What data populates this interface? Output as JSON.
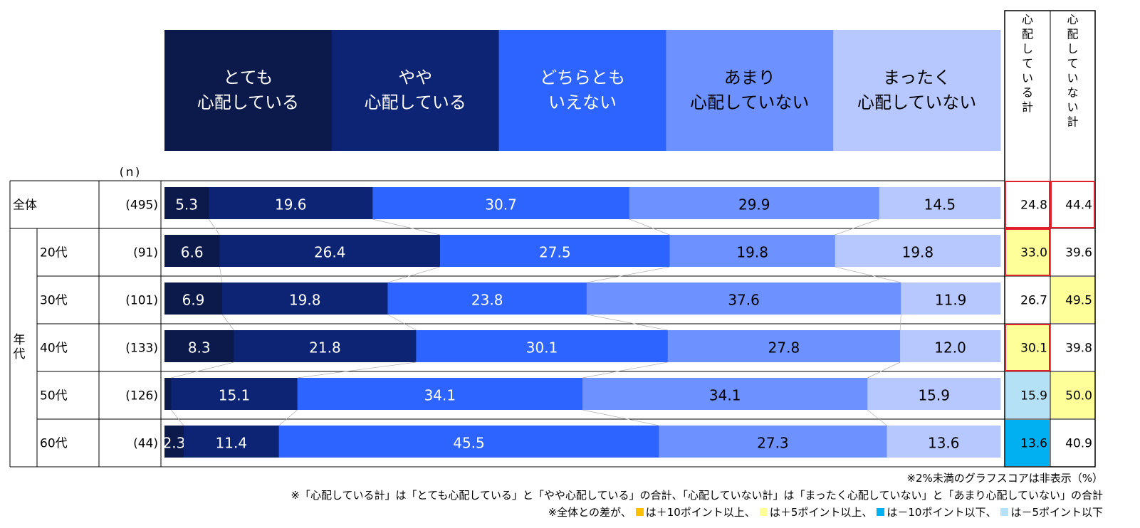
{
  "chart_data": {
    "type": "bar",
    "stacked": "100%",
    "n_header": "(ｎ)",
    "segment_labels": [
      "とても\n心配している",
      "やや\n心配している",
      "どちらとも\nいえない",
      "あまり\n心配していない",
      "まったく\n心配していない"
    ],
    "segment_colors": [
      "#0b1a4a",
      "#0d2475",
      "#2d64ff",
      "#6d91ff",
      "#b6c8ff"
    ],
    "total_headers": [
      "心配している計",
      "心配していない計"
    ],
    "group_label": "年代",
    "rows": [
      {
        "label": "全体",
        "n": "(495)",
        "values": [
          5.3,
          19.6,
          30.7,
          29.9,
          14.5
        ],
        "worry_total": "24.8",
        "noworry_total": "44.4",
        "worry_hl": "none",
        "noworry_hl": "none",
        "worry_box": true,
        "noworry_box": true
      },
      {
        "label": "20代",
        "n": "(91)",
        "values": [
          6.6,
          26.4,
          27.5,
          19.8,
          19.8
        ],
        "worry_total": "33.0",
        "noworry_total": "39.6",
        "worry_hl": "plus5",
        "noworry_hl": "none",
        "worry_box": true,
        "noworry_box": false
      },
      {
        "label": "30代",
        "n": "(101)",
        "values": [
          6.9,
          19.8,
          23.8,
          37.6,
          11.9
        ],
        "worry_total": "26.7",
        "noworry_total": "49.5",
        "worry_hl": "none",
        "noworry_hl": "plus5",
        "worry_box": false,
        "noworry_box": false
      },
      {
        "label": "40代",
        "n": "(133)",
        "values": [
          8.3,
          21.8,
          30.1,
          27.8,
          12.0
        ],
        "worry_total": "30.1",
        "noworry_total": "39.8",
        "worry_hl": "plus5",
        "noworry_hl": "none",
        "worry_box": true,
        "noworry_box": false
      },
      {
        "label": "50代",
        "n": "(126)",
        "values": [
          0.8,
          15.1,
          34.1,
          34.1,
          15.9
        ],
        "worry_total": "15.9",
        "noworry_total": "50.0",
        "worry_hl": "minus5",
        "noworry_hl": "plus5",
        "worry_box": false,
        "noworry_box": false
      },
      {
        "label": "60代",
        "n": "(44)",
        "values": [
          2.3,
          11.4,
          45.5,
          27.3,
          13.6
        ],
        "worry_total": "13.6",
        "noworry_total": "40.9",
        "worry_hl": "minus10",
        "noworry_hl": "none",
        "worry_box": false,
        "noworry_box": false
      }
    ],
    "hide_label_below": 2,
    "highlight_colors": {
      "plus10": "#ffc000",
      "plus5": "#ffff99",
      "minus10": "#00b0f0",
      "minus5": "#b4e1f5",
      "box": "#e0202a"
    }
  },
  "notes": {
    "line1": "※2%未満のグラフスコアは非表示（%）",
    "line2": "※「心配している計」は「とても心配している」と「やや心配している」の合計、「心配していない計」は「まったく心配していない」と「あまり心配していない」の合計",
    "line3_prefix": "※全体との差が、",
    "legend": [
      {
        "key": "plus10",
        "text": "は＋10ポイント以上、"
      },
      {
        "key": "plus5",
        "text": "は＋5ポイント以上、"
      },
      {
        "key": "minus10",
        "text": "は－10ポイント以下、"
      },
      {
        "key": "minus5",
        "text": "は－5ポイント以下"
      }
    ]
  }
}
